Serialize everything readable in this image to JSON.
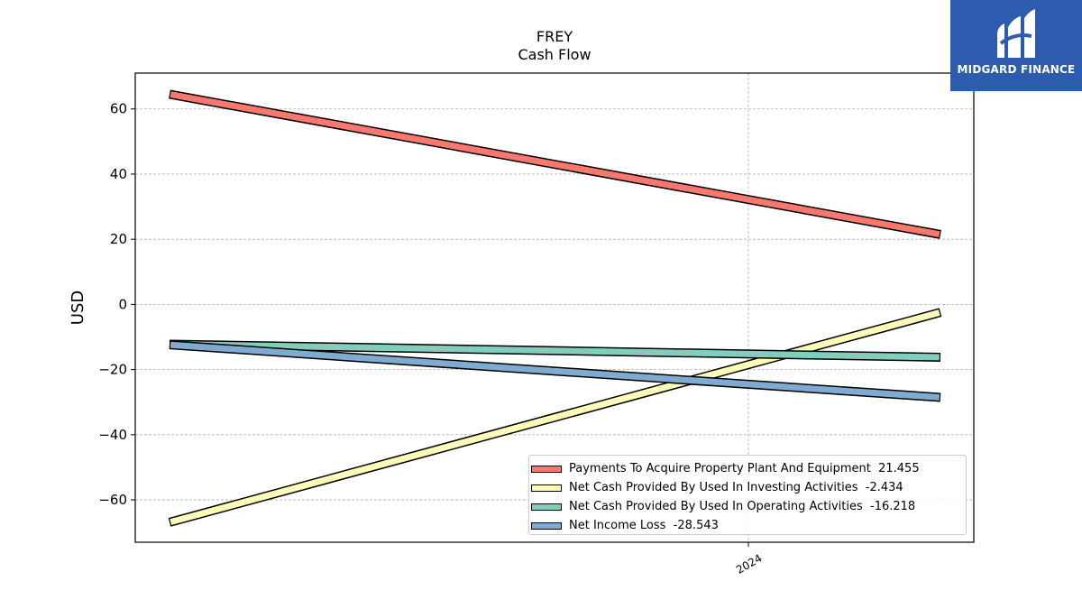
{
  "header": {
    "title_line1": "FREY",
    "title_line2": "Cash Flow"
  },
  "logo": {
    "text": "MIDGARD FINANCE",
    "background": "#2d5bae"
  },
  "chart_data": {
    "type": "line",
    "title": "FREY",
    "subtitle": "Cash Flow",
    "ylabel": "USD",
    "xlabel": "",
    "ylim": [
      -73,
      71
    ],
    "yticks": [
      60,
      40,
      20,
      0,
      -20,
      -40,
      -60
    ],
    "ytick_labels": [
      "60",
      "40",
      "20",
      "0",
      "−20",
      "−40",
      "−60"
    ],
    "xtick_labels": [
      "2024"
    ],
    "grid": true,
    "legend_position": "lower-right",
    "series": [
      {
        "name": "Payments To Acquire Property Plant And Equipment  21.455",
        "color": "#f8776e",
        "start": 64.5,
        "end": 21.455
      },
      {
        "name": "Net Cash Provided By Used In Investing Activities  -2.434",
        "color": "#fdfbb8",
        "start": -66.9,
        "end": -2.434
      },
      {
        "name": "Net Cash Provided By Used In Operating Activities  -16.218",
        "color": "#84cdbc",
        "start": -12.2,
        "end": -16.218
      },
      {
        "name": "Net Income Loss  -28.543",
        "color": "#7eabcf",
        "start": -12.4,
        "end": -28.543
      }
    ]
  }
}
